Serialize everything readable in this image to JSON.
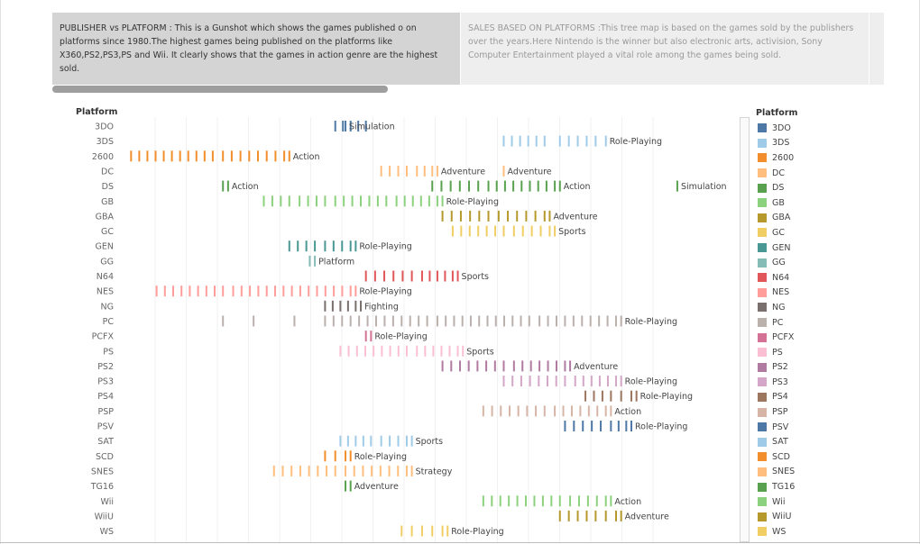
{
  "story": {
    "points": [
      {
        "text": "PUBLISHER vs PLATFORM : This is a Gunshot which shows  the games published o on platforms since 1980.The highest games being published on the platforms like X360,PS2,PS3,PS and Wii. It clearly shows that the games in action genre are the highest sold."
      },
      {
        "text": "SALES BASED ON PLATFORMS :This tree map is based on the games sold by the publishers over the years.Here Nintendo is the winner but also electronic arts, activision, Sony Computer Entertainment played a vital role among the games being sold."
      }
    ]
  },
  "chart": {
    "row_header": "Platform",
    "legend_title": "Platform"
  },
  "chart_data": {
    "type": "scatter",
    "mark": "tick",
    "xlim": [
      0,
      100
    ],
    "grid": true,
    "legend_placement": "right",
    "rows": [
      {
        "name": "3DO",
        "color": "#4e79a7",
        "ticks": [
          [
            42,
            48
          ]
        ],
        "labels": [
          {
            "x": 44,
            "text": "Simulation"
          }
        ]
      },
      {
        "name": "3DS",
        "color": "#a0cbe8",
        "ticks": [
          [
            75,
            83
          ],
          [
            86,
            93
          ]
        ],
        "labels": [
          {
            "x": 95,
            "text": "Role-Playing"
          }
        ]
      },
      {
        "name": "2600",
        "color": "#f28e2b",
        "ticks": [
          [
            2,
            18
          ],
          [
            20,
            32
          ]
        ],
        "labels": [
          {
            "x": 33,
            "text": "Action"
          }
        ]
      },
      {
        "name": "DC",
        "color": "#ffbe7d",
        "ticks": [
          [
            51,
            56
          ],
          [
            58,
            61
          ]
        ],
        "labels": [
          {
            "x": 62,
            "text": "Adventure"
          },
          {
            "x": 75,
            "text": "Adventure"
          }
        ]
      },
      {
        "name": "DS",
        "color": "#59a14f",
        "ticks": [
          [
            20,
            20
          ],
          [
            61,
            70
          ],
          [
            72,
            85
          ]
        ],
        "labels": [
          {
            "x": 21,
            "text": "Action"
          },
          {
            "x": 86,
            "text": "Action"
          },
          {
            "x": 109,
            "text": "Simulation"
          }
        ]
      },
      {
        "name": "GB",
        "color": "#8cd17d",
        "ticks": [
          [
            28,
            33
          ],
          [
            35,
            40
          ],
          [
            42,
            52
          ],
          [
            54,
            62
          ]
        ],
        "labels": [
          {
            "x": 63,
            "text": "Role-Playing"
          }
        ]
      },
      {
        "name": "GBA",
        "color": "#b6992d",
        "ticks": [
          [
            63,
            72
          ],
          [
            74,
            83
          ]
        ],
        "labels": [
          {
            "x": 84,
            "text": "Adventure"
          }
        ]
      },
      {
        "name": "GC",
        "color": "#f1ce63",
        "ticks": [
          [
            65,
            75
          ],
          [
            77,
            84
          ]
        ],
        "labels": [
          {
            "x": 85,
            "text": "Sports"
          }
        ]
      },
      {
        "name": "GEN",
        "color": "#499894",
        "ticks": [
          [
            33,
            38
          ],
          [
            40,
            45
          ]
        ],
        "labels": [
          {
            "x": 46,
            "text": "Role-Playing"
          }
        ]
      },
      {
        "name": "GG",
        "color": "#86bcb6",
        "ticks": [
          [
            37,
            37
          ]
        ],
        "labels": [
          {
            "x": 38,
            "text": "Platform"
          }
        ]
      },
      {
        "name": "N64",
        "color": "#e15759",
        "ticks": [
          [
            48,
            57
          ],
          [
            59,
            65
          ]
        ],
        "labels": [
          {
            "x": 66,
            "text": "Sports"
          }
        ]
      },
      {
        "name": "NES",
        "color": "#ff9d9a",
        "ticks": [
          [
            7,
            20
          ],
          [
            22,
            45
          ]
        ],
        "labels": [
          {
            "x": 46,
            "text": "Role-Playing"
          }
        ]
      },
      {
        "name": "NG",
        "color": "#79706e",
        "ticks": [
          [
            40,
            46
          ]
        ],
        "labels": [
          {
            "x": 47,
            "text": "Fighting"
          }
        ]
      },
      {
        "name": "PC",
        "color": "#bab0ac",
        "ticks": [
          [
            20,
            20
          ],
          [
            26,
            26
          ],
          [
            34,
            34
          ],
          [
            40,
            60
          ],
          [
            62,
            80
          ],
          [
            82,
            97
          ]
        ],
        "labels": [
          {
            "x": 98,
            "text": "Role-Playing"
          }
        ]
      },
      {
        "name": "PCFX",
        "color": "#d37295",
        "ticks": [
          [
            48,
            48
          ]
        ],
        "labels": [
          {
            "x": 49,
            "text": "Role-Playing"
          }
        ]
      },
      {
        "name": "PS",
        "color": "#fabfd2",
        "ticks": [
          [
            43,
            56
          ],
          [
            58,
            66
          ]
        ],
        "labels": [
          {
            "x": 67,
            "text": "Sports"
          }
        ]
      },
      {
        "name": "PS2",
        "color": "#b07aa1",
        "ticks": [
          [
            63,
            75
          ],
          [
            77,
            87
          ]
        ],
        "labels": [
          {
            "x": 88,
            "text": "Adventure"
          }
        ]
      },
      {
        "name": "PS3",
        "color": "#d4a6c8",
        "ticks": [
          [
            75,
            87
          ],
          [
            89,
            97
          ]
        ],
        "labels": [
          {
            "x": 98,
            "text": "Role-Playing"
          }
        ]
      },
      {
        "name": "PS4",
        "color": "#9d7660",
        "ticks": [
          [
            91,
            96
          ],
          [
            98,
            100
          ]
        ],
        "labels": [
          {
            "x": 101,
            "text": "Role-Playing"
          }
        ]
      },
      {
        "name": "PSP",
        "color": "#d7b5a6",
        "ticks": [
          [
            71,
            83
          ],
          [
            85,
            95
          ]
        ],
        "labels": [
          {
            "x": 96,
            "text": "Action"
          }
        ]
      },
      {
        "name": "PSV",
        "color": "#4e79a7",
        "ticks": [
          [
            87,
            94
          ],
          [
            96,
            99
          ]
        ],
        "labels": [
          {
            "x": 100,
            "text": "Role-Playing"
          }
        ]
      },
      {
        "name": "SAT",
        "color": "#a0cbe8",
        "ticks": [
          [
            43,
            49
          ],
          [
            51,
            56
          ]
        ],
        "labels": [
          {
            "x": 57,
            "text": "Sports"
          }
        ]
      },
      {
        "name": "SCD",
        "color": "#f28e2b",
        "ticks": [
          [
            40,
            44
          ]
        ],
        "labels": [
          {
            "x": 45,
            "text": "Role-Playing"
          }
        ]
      },
      {
        "name": "SNES",
        "color": "#ffbe7d",
        "ticks": [
          [
            30,
            42
          ],
          [
            44,
            56
          ]
        ],
        "labels": [
          {
            "x": 57,
            "text": "Strategy"
          }
        ]
      },
      {
        "name": "TG16",
        "color": "#59a14f",
        "ticks": [
          [
            44,
            44
          ]
        ],
        "labels": [
          {
            "x": 45,
            "text": "Adventure"
          }
        ]
      },
      {
        "name": "Wii",
        "color": "#8cd17d",
        "ticks": [
          [
            71,
            86
          ],
          [
            88,
            95
          ]
        ],
        "labels": [
          {
            "x": 96,
            "text": "Action"
          }
        ]
      },
      {
        "name": "WiiU",
        "color": "#b6992d",
        "ticks": [
          [
            86,
            93
          ],
          [
            95,
            97
          ]
        ],
        "labels": [
          {
            "x": 98,
            "text": "Adventure"
          }
        ]
      },
      {
        "name": "WS",
        "color": "#f1ce63",
        "ticks": [
          [
            55,
            59
          ],
          [
            61,
            63
          ]
        ],
        "labels": [
          {
            "x": 64,
            "text": "Role-Playing"
          }
        ]
      }
    ]
  }
}
